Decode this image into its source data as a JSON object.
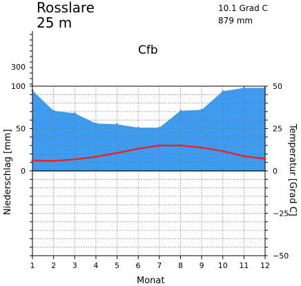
{
  "header": {
    "station": "Rosslare",
    "elevation": "25 m",
    "mean_temperature": "10.1 Grad C",
    "annual_precipitation": "879 mm",
    "climate_class": "Cfb"
  },
  "chart_data": {
    "type": "area",
    "xlabel": "Monat",
    "ylabel_left": "Niederschlag [mm]",
    "ylabel_right": "Temperatur [Grad C]",
    "x": [
      1,
      2,
      3,
      4,
      5,
      6,
      7,
      8,
      9,
      10,
      11,
      12
    ],
    "x_tick_labels": [
      "1",
      "2",
      "3",
      "4",
      "5",
      "6",
      "7",
      "8",
      "9",
      "10",
      "11",
      "12"
    ],
    "left_ticks": [
      "300",
      "100",
      "50",
      "0"
    ],
    "right_ticks": [
      "50",
      "25",
      "0",
      "−25",
      "−50"
    ],
    "ylim_precip": [
      0,
      100
    ],
    "ylim_temp": [
      -50,
      50
    ],
    "grid": true,
    "series": [
      {
        "values": [
          95,
          71,
          68,
          56,
          55,
          51,
          51,
          71,
          72,
          94,
          98,
          98
        ],
        "color": "#3d9cf0"
      },
      {
        "values": [
          6.2,
          5.9,
          6.8,
          8.3,
          10.6,
          13.1,
          15.0,
          15.0,
          13.7,
          11.7,
          8.6,
          7.2
        ],
        "color": "#e3242b"
      }
    ]
  }
}
